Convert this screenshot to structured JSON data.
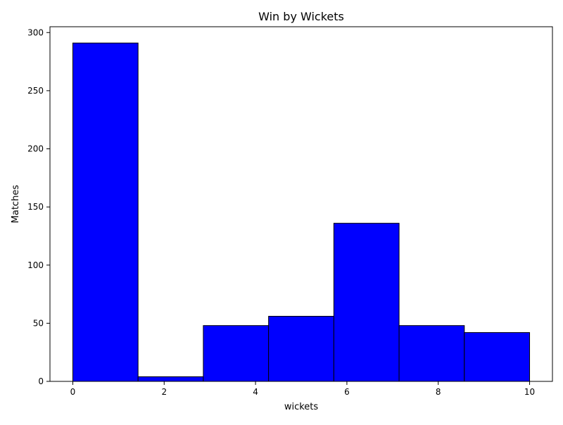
{
  "chart_data": {
    "type": "bar",
    "title": "Win by Wickets",
    "xlabel": "wickets",
    "ylabel": "Matches",
    "bins": [
      {
        "x0": 0,
        "x1": 1.4286,
        "value": 291
      },
      {
        "x0": 1.4286,
        "x1": 2.8571,
        "value": 4
      },
      {
        "x0": 2.8571,
        "x1": 4.2857,
        "value": 48
      },
      {
        "x0": 4.2857,
        "x1": 5.7143,
        "value": 56
      },
      {
        "x0": 5.7143,
        "x1": 7.1429,
        "value": 136
      },
      {
        "x0": 7.1429,
        "x1": 8.5714,
        "value": 48
      },
      {
        "x0": 8.5714,
        "x1": 10,
        "value": 42
      }
    ],
    "xlim": [
      -0.5,
      10.5
    ],
    "ylim": [
      0,
      305
    ],
    "xticks": [
      0,
      2,
      4,
      6,
      8,
      10
    ],
    "yticks": [
      0,
      50,
      100,
      150,
      200,
      250,
      300
    ],
    "grid": false,
    "bar_color": "#0000ff",
    "edge_color": "#000000"
  }
}
